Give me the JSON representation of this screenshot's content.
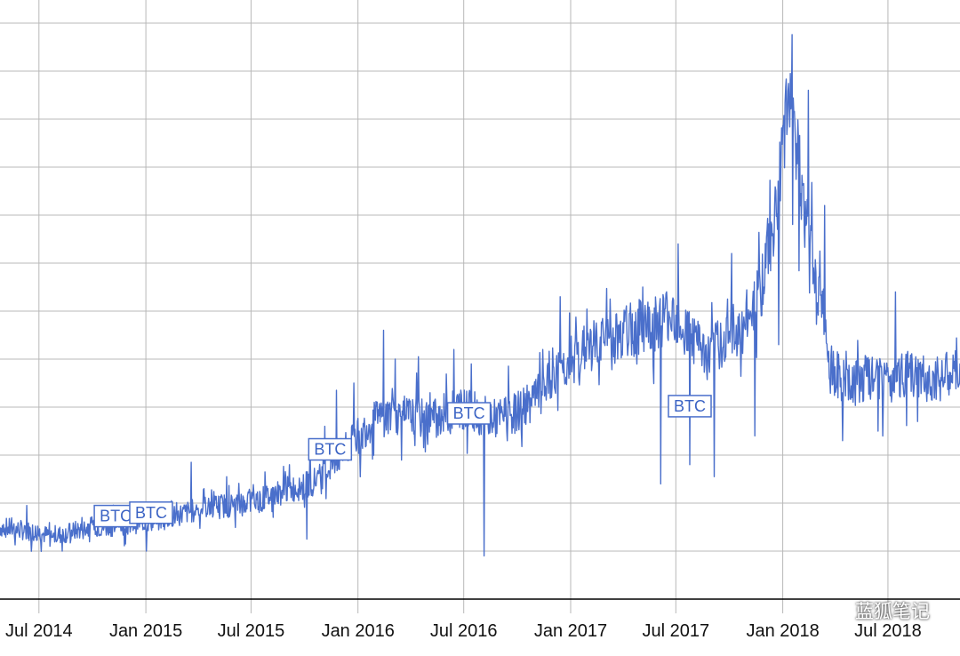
{
  "chart_data": {
    "type": "line",
    "title": "",
    "xlabel": "",
    "ylabel": "",
    "grid": true,
    "legend": "none",
    "x_ticks": [
      "Jul 2014",
      "Jan 2015",
      "Jul 2015",
      "Jan 2016",
      "Jul 2016",
      "Jan 2017",
      "Jul 2017",
      "Jan 2018",
      "Jul 2018"
    ],
    "xlim": [
      "2014-04-25",
      "2018-11-02"
    ],
    "ylim": [
      0,
      12
    ],
    "y_ticks": [
      1,
      2,
      3,
      4,
      5,
      6,
      7,
      8,
      9,
      10,
      11,
      12
    ],
    "colors": {
      "line": "#4a6fcb",
      "grid": "#b8b8b8",
      "axis": "#000000"
    },
    "series": [
      {
        "name": "",
        "points": [
          [
            "2014-04-25",
            1.5
          ],
          [
            "2014-05-25",
            1.45
          ],
          [
            "2014-06-25",
            1.4
          ],
          [
            "2014-07-25",
            1.3
          ],
          [
            "2014-08-25",
            1.4
          ],
          [
            "2014-09-25",
            1.5
          ],
          [
            "2014-10-25",
            1.5
          ],
          [
            "2014-11-25",
            1.55
          ],
          [
            "2014-12-25",
            1.6
          ],
          [
            "2015-01-25",
            1.65
          ],
          [
            "2015-02-25",
            1.75
          ],
          [
            "2015-03-25",
            1.85
          ],
          [
            "2015-04-25",
            1.95
          ],
          [
            "2015-05-25",
            1.95
          ],
          [
            "2015-06-25",
            2.0
          ],
          [
            "2015-07-25",
            2.1
          ],
          [
            "2015-08-25",
            2.25
          ],
          [
            "2015-09-25",
            2.35
          ],
          [
            "2015-10-25",
            2.5
          ],
          [
            "2015-11-25",
            2.9
          ],
          [
            "2015-12-25",
            3.3
          ],
          [
            "2016-01-25",
            3.7
          ],
          [
            "2016-02-25",
            3.85
          ],
          [
            "2016-03-25",
            3.8
          ],
          [
            "2016-04-25",
            3.75
          ],
          [
            "2016-05-25",
            3.85
          ],
          [
            "2016-06-25",
            4.0
          ],
          [
            "2016-07-25",
            3.85
          ],
          [
            "2016-08-25",
            3.75
          ],
          [
            "2016-09-25",
            3.85
          ],
          [
            "2016-10-25",
            4.1
          ],
          [
            "2016-11-25",
            4.5
          ],
          [
            "2016-12-25",
            4.9
          ],
          [
            "2017-01-25",
            5.2
          ],
          [
            "2017-02-25",
            5.35
          ],
          [
            "2017-03-25",
            5.5
          ],
          [
            "2017-04-25",
            5.65
          ],
          [
            "2017-05-25",
            5.75
          ],
          [
            "2017-06-25",
            6.0
          ],
          [
            "2017-07-25",
            5.5
          ],
          [
            "2017-08-25",
            5.0
          ],
          [
            "2017-09-25",
            5.5
          ],
          [
            "2017-10-25",
            5.7
          ],
          [
            "2017-11-25",
            6.5
          ],
          [
            "2017-12-25",
            8.5
          ],
          [
            "2018-01-10",
            10.2
          ],
          [
            "2018-01-25",
            9.5
          ],
          [
            "2018-02-10",
            7.8
          ],
          [
            "2018-02-25",
            6.8
          ],
          [
            "2018-03-10",
            6.2
          ],
          [
            "2018-03-25",
            4.8
          ],
          [
            "2018-04-25",
            4.4
          ],
          [
            "2018-05-25",
            4.6
          ],
          [
            "2018-06-25",
            4.5
          ],
          [
            "2018-07-25",
            4.7
          ],
          [
            "2018-08-25",
            4.6
          ],
          [
            "2018-09-25",
            4.6
          ],
          [
            "2018-10-25",
            4.7
          ],
          [
            "2018-11-02",
            4.7
          ]
        ],
        "spikes": [
          [
            "2014-06-10",
            1.95
          ],
          [
            "2014-07-20",
            1.1
          ],
          [
            "2014-10-05",
            1.9
          ],
          [
            "2015-01-02",
            1.0
          ],
          [
            "2015-02-14",
            2.05
          ],
          [
            "2015-03-20",
            2.85
          ],
          [
            "2015-05-20",
            2.55
          ],
          [
            "2015-07-25",
            2.65
          ],
          [
            "2015-09-05",
            2.8
          ],
          [
            "2015-10-05",
            1.25
          ],
          [
            "2015-11-05",
            3.6
          ],
          [
            "2015-11-25",
            4.35
          ],
          [
            "2015-12-25",
            4.5
          ],
          [
            "2016-01-05",
            2.55
          ],
          [
            "2016-02-14",
            5.6
          ],
          [
            "2016-03-05",
            5.0
          ],
          [
            "2016-04-14",
            5.05
          ],
          [
            "2016-06-14",
            5.2
          ],
          [
            "2016-07-14",
            4.9
          ],
          [
            "2016-08-05",
            0.9
          ],
          [
            "2016-09-14",
            3.3
          ],
          [
            "2016-11-14",
            5.2
          ],
          [
            "2016-12-14",
            6.3
          ],
          [
            "2017-01-25",
            4.8
          ],
          [
            "2017-03-10",
            6.25
          ],
          [
            "2017-05-05",
            6.5
          ],
          [
            "2017-06-05",
            2.4
          ],
          [
            "2017-07-05",
            7.4
          ],
          [
            "2017-07-25",
            2.8
          ],
          [
            "2017-09-05",
            2.55
          ],
          [
            "2017-10-05",
            7.2
          ],
          [
            "2017-11-14",
            3.4
          ],
          [
            "2017-12-25",
            5.3
          ],
          [
            "2018-01-14",
            10.95
          ],
          [
            "2018-02-14",
            10.6
          ],
          [
            "2018-03-14",
            8.2
          ],
          [
            "2018-04-14",
            3.3
          ],
          [
            "2018-05-05",
            4.4
          ],
          [
            "2018-06-14",
            3.5
          ],
          [
            "2018-07-14",
            6.4
          ]
        ]
      }
    ],
    "annotations": [
      {
        "x": "2014-11-10",
        "y": 1.73,
        "text": "BTC"
      },
      {
        "x": "2015-01-10",
        "y": 1.8,
        "text": "BTC"
      },
      {
        "x": "2015-11-14",
        "y": 3.12,
        "text": "BTC"
      },
      {
        "x": "2016-07-10",
        "y": 3.87,
        "text": "BTC"
      },
      {
        "x": "2017-07-25",
        "y": 4.02,
        "text": "BTC"
      }
    ]
  },
  "watermark": {
    "text": "蓝狐笔记",
    "icon": "wechat-icon"
  }
}
